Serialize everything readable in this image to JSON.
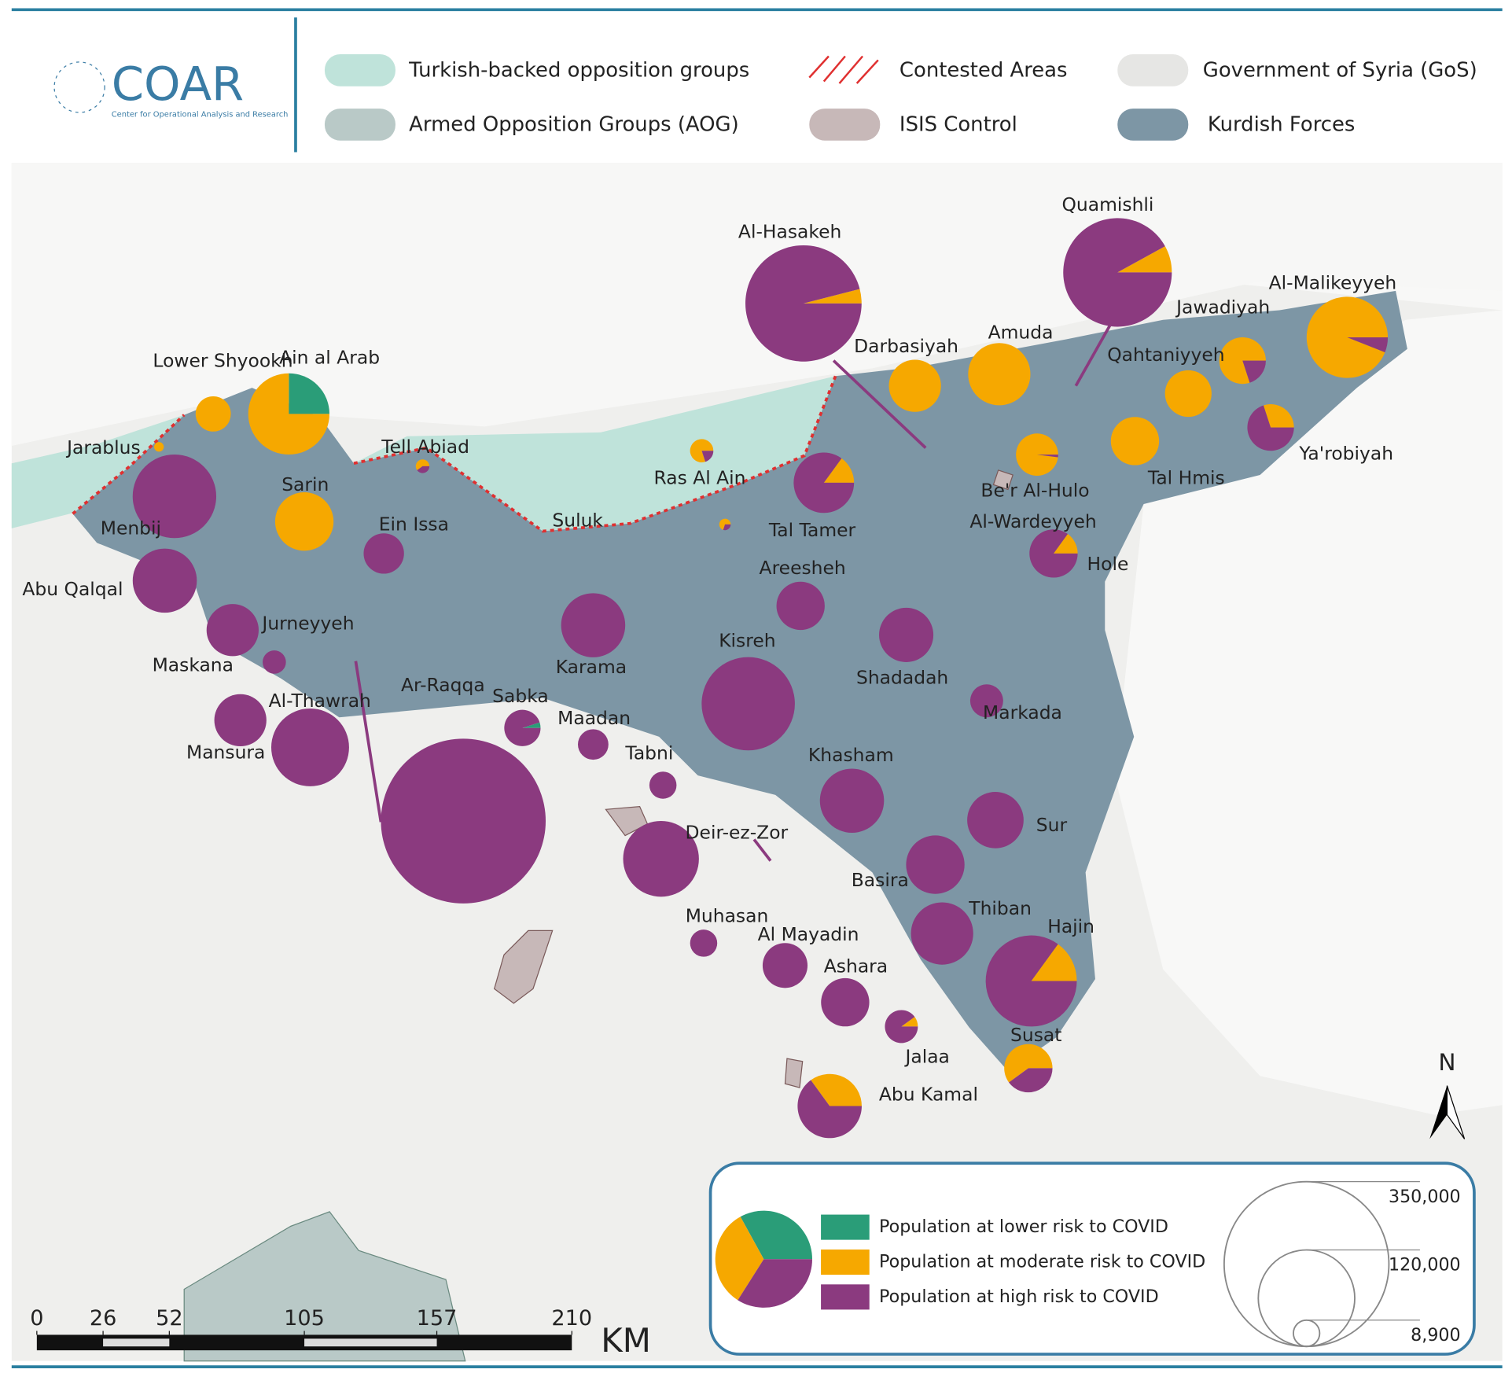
{
  "header": {
    "logo": "COAR",
    "logo_subtitle": "Center for Operational Analysis and Research",
    "legend": [
      "Turkish-backed opposition groups",
      "Armed Opposition Groups (AOG)",
      "Contested Areas",
      "ISIS Control",
      "Government of Syria (GoS)",
      "Kurdish Forces"
    ]
  },
  "chart_data": {
    "type": "pie-map",
    "risk_legend": [
      {
        "name": "Population at lower risk to COVID",
        "color": "#2a9d78",
        "share": 33
      },
      {
        "name": "Population at moderate risk to COVID",
        "color": "#f6a800",
        "share": 33
      },
      {
        "name": "Population at high risk to COVID",
        "color": "#8b3a7f",
        "share": 34
      }
    ],
    "size_legend": [
      {
        "value": 350000,
        "label": "350,000"
      },
      {
        "value": 120000,
        "label": "120,000"
      },
      {
        "value": 8900,
        "label": "8,900"
      }
    ],
    "places": [
      {
        "name": "Al-Hasakeh",
        "population": 174000,
        "shares": [
          0,
          4,
          96
        ]
      },
      {
        "name": "Quamishli",
        "population": 152000,
        "shares": [
          0,
          8,
          92
        ]
      },
      {
        "name": "Al-Malikeyyeh",
        "population": 85000,
        "shares": [
          0,
          94,
          6
        ]
      },
      {
        "name": "Jawadiyah",
        "population": 28000,
        "shares": [
          0,
          80,
          20
        ]
      },
      {
        "name": "Darbasiyah",
        "population": 35000,
        "shares": [
          0,
          100,
          0
        ]
      },
      {
        "name": "Amuda",
        "population": 50000,
        "shares": [
          0,
          100,
          0
        ]
      },
      {
        "name": "Qahtaniyyeh",
        "population": 28000,
        "shares": [
          0,
          100,
          0
        ]
      },
      {
        "name": "Ya'robiyah",
        "population": 28000,
        "shares": [
          0,
          30,
          70
        ]
      },
      {
        "name": "Tal Hmis",
        "population": 30000,
        "shares": [
          0,
          100,
          0
        ]
      },
      {
        "name": "Be'r Al-Hulo",
        "population": 23000,
        "shares": [
          0,
          98,
          2
        ]
      },
      {
        "name": "Tal Tamer",
        "population": 47000,
        "shares": [
          0,
          15,
          85
        ]
      },
      {
        "name": "Ras Al Ain",
        "population": 7000,
        "shares": [
          0,
          80,
          20
        ]
      },
      {
        "name": "Hole",
        "population": 30000,
        "shares": [
          0,
          15,
          85
        ]
      },
      {
        "name": "Suluk",
        "population": 1700,
        "shares": [
          0,
          70,
          30
        ]
      },
      {
        "name": "Tell Abiad",
        "population": 2400,
        "shares": [
          0,
          60,
          40
        ]
      },
      {
        "name": "Ain al Arab",
        "population": 85000,
        "shares": [
          25,
          75,
          0
        ]
      },
      {
        "name": "Lower Shyookh",
        "population": 16000,
        "shares": [
          0,
          100,
          0
        ]
      },
      {
        "name": "Jarablus",
        "population": 1200,
        "shares": [
          0,
          100,
          0
        ]
      },
      {
        "name": "Sarin",
        "population": 44000,
        "shares": [
          0,
          100,
          0
        ]
      },
      {
        "name": "Menbij",
        "population": 90000,
        "shares": [
          0,
          0,
          100
        ]
      },
      {
        "name": "Ein Issa",
        "population": 21000,
        "shares": [
          0,
          0,
          100
        ]
      },
      {
        "name": "Abu Qalqal",
        "population": 53000,
        "shares": [
          0,
          0,
          100
        ]
      },
      {
        "name": "Jurneyyeh",
        "population": 35000,
        "shares": [
          0,
          0,
          100
        ]
      },
      {
        "name": "Maskana",
        "population": 7000,
        "shares": [
          0,
          0,
          100
        ]
      },
      {
        "name": "Karama",
        "population": 53000,
        "shares": [
          0,
          0,
          100
        ]
      },
      {
        "name": "Areesheh",
        "population": 30000,
        "shares": [
          0,
          0,
          100
        ]
      },
      {
        "name": "Shadadah",
        "population": 38000,
        "shares": [
          0,
          0,
          100
        ]
      },
      {
        "name": "Kisreh",
        "population": 112000,
        "shares": [
          0,
          0,
          100
        ]
      },
      {
        "name": "Markada",
        "population": 14000,
        "shares": [
          0,
          0,
          100
        ]
      },
      {
        "name": "Mansura",
        "population": 35000,
        "shares": [
          0,
          0,
          100
        ]
      },
      {
        "name": "Al-Thawrah",
        "population": 78000,
        "shares": [
          0,
          0,
          100
        ]
      },
      {
        "name": "Ar-Raqqa",
        "population": 350000,
        "shares": [
          0,
          0,
          100
        ]
      },
      {
        "name": "Sabka",
        "population": 17000,
        "shares": [
          5,
          0,
          95
        ]
      },
      {
        "name": "Maadan",
        "population": 12000,
        "shares": [
          0,
          0,
          100
        ]
      },
      {
        "name": "Tabni",
        "population": 9500,
        "shares": [
          0,
          0,
          100
        ]
      },
      {
        "name": "Khasham",
        "population": 53000,
        "shares": [
          0,
          0,
          100
        ]
      },
      {
        "name": "Sur",
        "population": 41000,
        "shares": [
          0,
          0,
          100
        ]
      },
      {
        "name": "Deir-ez-Zor",
        "population": 74000,
        "shares": [
          0,
          0,
          100
        ]
      },
      {
        "name": "Basira",
        "population": 44000,
        "shares": [
          0,
          0,
          100
        ]
      },
      {
        "name": "Thiban",
        "population": 50000,
        "shares": [
          0,
          0,
          100
        ]
      },
      {
        "name": "Hajin",
        "population": 107000,
        "shares": [
          0,
          15,
          85
        ]
      },
      {
        "name": "Muhasan",
        "population": 9500,
        "shares": [
          0,
          0,
          100
        ]
      },
      {
        "name": "Al Mayadin",
        "population": 26000,
        "shares": [
          0,
          0,
          100
        ]
      },
      {
        "name": "Ashara",
        "population": 30000,
        "shares": [
          0,
          0,
          100
        ]
      },
      {
        "name": "Jalaa",
        "population": 14000,
        "shares": [
          0,
          10,
          90
        ]
      },
      {
        "name": "Susat",
        "population": 30000,
        "shares": [
          0,
          60,
          40
        ]
      },
      {
        "name": "Abu Kamal",
        "population": 53000,
        "shares": [
          0,
          35,
          65
        ]
      }
    ],
    "extra_labels": [
      "Al-Wardeyyeh"
    ],
    "scale_bar": {
      "ticks": [
        0,
        26,
        52,
        105,
        157,
        210
      ],
      "unit": "KM"
    },
    "north": "N"
  }
}
